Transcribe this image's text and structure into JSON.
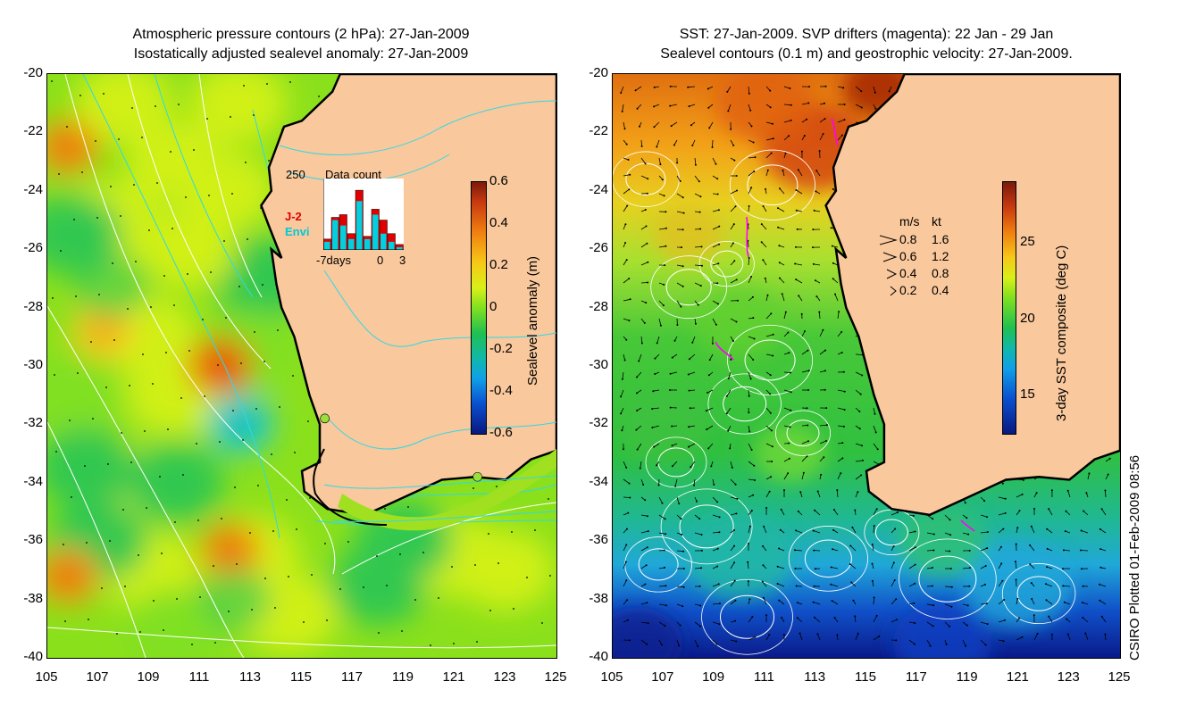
{
  "left_panel": {
    "title_line1": "Atmospheric pressure contours (2 hPa): 27-Jan-2009",
    "title_line2": "Isostatically adjusted sealevel anomaly: 27-Jan-2009",
    "colorbar_label": "Sealevel anomaly (m)",
    "colorbar_ticks": [
      "0.6",
      "0.4",
      "0.2",
      "0",
      "-0.2",
      "-0.4",
      "-0.6"
    ],
    "inset": {
      "count_label": "250",
      "title": "Data count",
      "j2_label": "J-2",
      "envi_label": "Envi",
      "x_label_left": "-7days",
      "x_label_mid": "0",
      "x_label_right": "3",
      "j2_color": "#e00000",
      "envi_color": "#00d0e0"
    }
  },
  "right_panel": {
    "title_line1": "SST: 27-Jan-2009. SVP drifters (magenta): 22 Jan - 29 Jan",
    "title_line2": "Sealevel contours (0.1 m) and geostrophic velocity: 27-Jan-2009.",
    "colorbar_label": "3-day SST composite (deg C)",
    "colorbar_ticks": [
      "25",
      "20",
      "15"
    ],
    "legend_header_ms": "m/s",
    "legend_header_kt": "kt",
    "legend_rows": [
      {
        "ms": "0.8",
        "kt": "1.6"
      },
      {
        "ms": "0.6",
        "kt": "1.2"
      },
      {
        "ms": "0.4",
        "kt": "0.8"
      },
      {
        "ms": "0.2",
        "kt": "0.4"
      }
    ]
  },
  "credit": "CSIRO Plotted 01-Feb-2009 08:56",
  "colors": {
    "land": "#f9c89c",
    "coast": "#000000",
    "contour_cyan": "#30d8e8",
    "contour_white": "#ffffff",
    "drifter": "#ff00ff"
  },
  "chart_data": [
    {
      "type": "heatmap",
      "title": "Atmospheric pressure contours (2 hPa): 27-Jan-2009 / Isostatically adjusted sealevel anomaly: 27-Jan-2009",
      "xlabel": "",
      "ylabel": "",
      "x_ticks": [
        "105",
        "107",
        "109",
        "111",
        "113",
        "115",
        "117",
        "119",
        "121",
        "123",
        "125"
      ],
      "y_ticks": [
        "-20",
        "-22",
        "-24",
        "-26",
        "-28",
        "-30",
        "-32",
        "-34",
        "-36",
        "-38",
        "-40"
      ],
      "xlim": [
        105,
        125
      ],
      "ylim": [
        -40,
        -20
      ],
      "colorbar": {
        "label": "Sealevel anomaly (m)",
        "range": [
          -0.6,
          0.6
        ]
      },
      "features": [
        {
          "name": "positive anomaly",
          "lon": 111.8,
          "lat": -30,
          "value": 0.35
        },
        {
          "name": "positive anomaly",
          "lon": 105.8,
          "lat": -22.5,
          "value": 0.25
        },
        {
          "name": "positive anomaly",
          "lon": 112.2,
          "lat": -36.3,
          "value": 0.25
        },
        {
          "name": "positive anomaly",
          "lon": 105.8,
          "lat": -37.2,
          "value": 0.25
        },
        {
          "name": "positive anomaly",
          "lon": 107.2,
          "lat": -28.8,
          "value": 0.2
        },
        {
          "name": "negative anomaly",
          "lon": 112.6,
          "lat": -32,
          "value": -0.25
        },
        {
          "name": "negative anomaly",
          "lon": 107.5,
          "lat": -27.3,
          "value": -0.1
        },
        {
          "name": "negative anomaly",
          "lon": 112.4,
          "lat": -38,
          "value": -0.1
        }
      ],
      "inset_data_count": {
        "title": "Data count",
        "ymax": 250,
        "x_range_days": [
          -7,
          3
        ],
        "series": [
          {
            "name": "J-2",
            "values": [
              40,
              120,
              130,
              60,
              220,
              50,
              150,
              110,
              60,
              20
            ]
          },
          {
            "name": "Envi",
            "values": [
              30,
              110,
              90,
              40,
              180,
              40,
              130,
              60,
              30,
              10
            ]
          }
        ]
      }
    },
    {
      "type": "heatmap",
      "title": "SST: 27-Jan-2009. SVP drifters (magenta): 22 Jan - 29 Jan / Sealevel contours (0.1 m) and geostrophic velocity: 27-Jan-2009.",
      "xlabel": "",
      "ylabel": "",
      "x_ticks": [
        "105",
        "107",
        "109",
        "111",
        "113",
        "115",
        "117",
        "119",
        "121",
        "123",
        "125"
      ],
      "y_ticks": [
        "-20",
        "-22",
        "-24",
        "-26",
        "-28",
        "-30",
        "-32",
        "-34",
        "-36",
        "-38",
        "-40"
      ],
      "xlim": [
        105,
        125
      ],
      "ylim": [
        -40,
        -20
      ],
      "colorbar": {
        "label": "3-day SST composite (deg C)",
        "range": [
          12.5,
          29
        ]
      },
      "sst_by_latitude": [
        {
          "lat": -21,
          "sst": 27.5
        },
        {
          "lat": -24,
          "sst": 26
        },
        {
          "lat": -27,
          "sst": 23
        },
        {
          "lat": -30,
          "sst": 21
        },
        {
          "lat": -33,
          "sst": 20.5
        },
        {
          "lat": -35,
          "sst": 20
        },
        {
          "lat": -37,
          "sst": 18
        },
        {
          "lat": -39,
          "sst": 14.5
        }
      ],
      "velocity_legend": [
        {
          "ms": 0.8,
          "kt": 1.6
        },
        {
          "ms": 0.6,
          "kt": 1.2
        },
        {
          "ms": 0.4,
          "kt": 0.8
        },
        {
          "ms": 0.2,
          "kt": 0.4
        }
      ]
    }
  ]
}
